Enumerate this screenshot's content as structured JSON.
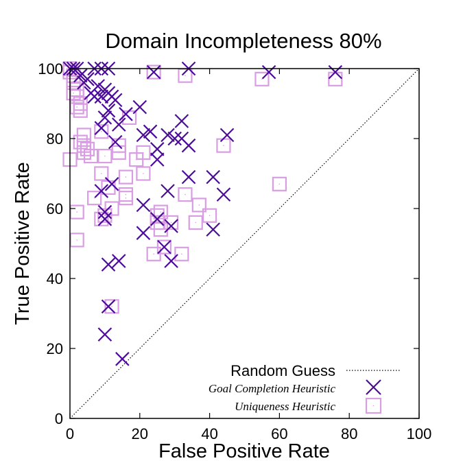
{
  "chart_data": {
    "type": "scatter",
    "title": "Domain Incompleteness 80%",
    "xlabel": "False Positive Rate",
    "ylabel": "True Positive Rate",
    "xlim": [
      0,
      100
    ],
    "ylim": [
      0,
      100
    ],
    "xticks": [
      "0",
      "20",
      "40",
      "60",
      "80",
      "100"
    ],
    "yticks": [
      "0",
      "20",
      "40",
      "60",
      "80",
      "100"
    ],
    "grid": false,
    "legend_position": "bottom-right",
    "reference_line": {
      "name": "Random Guess",
      "style": "dotted",
      "x": [
        0,
        100
      ],
      "y": [
        0,
        100
      ]
    },
    "series": [
      {
        "name": "Goal Completion Heuristic",
        "marker": "cross",
        "color": "#4B0C9A",
        "points": [
          [
            0,
            100
          ],
          [
            1,
            100
          ],
          [
            2,
            100
          ],
          [
            7,
            100
          ],
          [
            9,
            100
          ],
          [
            11,
            100
          ],
          [
            24,
            99
          ],
          [
            34,
            100
          ],
          [
            57,
            99
          ],
          [
            76,
            99
          ],
          [
            3,
            98
          ],
          [
            4,
            96
          ],
          [
            5,
            97
          ],
          [
            6,
            93
          ],
          [
            7,
            92
          ],
          [
            8,
            95
          ],
          [
            9,
            92
          ],
          [
            10,
            94
          ],
          [
            11,
            93
          ],
          [
            12,
            92
          ],
          [
            13,
            91
          ],
          [
            10,
            86
          ],
          [
            11,
            88
          ],
          [
            14,
            84
          ],
          [
            16,
            87
          ],
          [
            20,
            89
          ],
          [
            9,
            83
          ],
          [
            13,
            79
          ],
          [
            21,
            81
          ],
          [
            23,
            82
          ],
          [
            25,
            77
          ],
          [
            28,
            81
          ],
          [
            30,
            80
          ],
          [
            32,
            85
          ],
          [
            32,
            80
          ],
          [
            34,
            78
          ],
          [
            45,
            81
          ],
          [
            25,
            74
          ],
          [
            34,
            69
          ],
          [
            41,
            69
          ],
          [
            44,
            64
          ],
          [
            12,
            67
          ],
          [
            9,
            65
          ],
          [
            28,
            65
          ],
          [
            21,
            61
          ],
          [
            25,
            57
          ],
          [
            29,
            55
          ],
          [
            10,
            59
          ],
          [
            10,
            57
          ],
          [
            21,
            53
          ],
          [
            41,
            54
          ],
          [
            27,
            49
          ],
          [
            29,
            45
          ],
          [
            11,
            44
          ],
          [
            14,
            45
          ],
          [
            11,
            32
          ],
          [
            10,
            24
          ],
          [
            15,
            17
          ]
        ]
      },
      {
        "name": "Uniqueness Heuristic",
        "marker": "square",
        "color": "#D99DE3",
        "points": [
          [
            0,
            100
          ],
          [
            0,
            99
          ],
          [
            1,
            98
          ],
          [
            1,
            96
          ],
          [
            2,
            94
          ],
          [
            1,
            93
          ],
          [
            2,
            92
          ],
          [
            3,
            90
          ],
          [
            2,
            89
          ],
          [
            3,
            88
          ],
          [
            24,
            99
          ],
          [
            33,
            98
          ],
          [
            55,
            97
          ],
          [
            76,
            97
          ],
          [
            4,
            81
          ],
          [
            3,
            79
          ],
          [
            4,
            78
          ],
          [
            5,
            77
          ],
          [
            4,
            76
          ],
          [
            6,
            75
          ],
          [
            10,
            75
          ],
          [
            9,
            82
          ],
          [
            17,
            86
          ],
          [
            14,
            78
          ],
          [
            14,
            76
          ],
          [
            21,
            76
          ],
          [
            19,
            74
          ],
          [
            0,
            74
          ],
          [
            21,
            70
          ],
          [
            9,
            70
          ],
          [
            16,
            69
          ],
          [
            44,
            78
          ],
          [
            60,
            67
          ],
          [
            11,
            66
          ],
          [
            16,
            64
          ],
          [
            16,
            63
          ],
          [
            33,
            64
          ],
          [
            7,
            63
          ],
          [
            37,
            61
          ],
          [
            2,
            59
          ],
          [
            12,
            60
          ],
          [
            10,
            58
          ],
          [
            26,
            59
          ],
          [
            25,
            58
          ],
          [
            9,
            57
          ],
          [
            25,
            56
          ],
          [
            29,
            56
          ],
          [
            36,
            56
          ],
          [
            40,
            58
          ],
          [
            26,
            54
          ],
          [
            2,
            51
          ],
          [
            27,
            49
          ],
          [
            24,
            47
          ],
          [
            32,
            47
          ],
          [
            12,
            32
          ]
        ]
      }
    ]
  }
}
